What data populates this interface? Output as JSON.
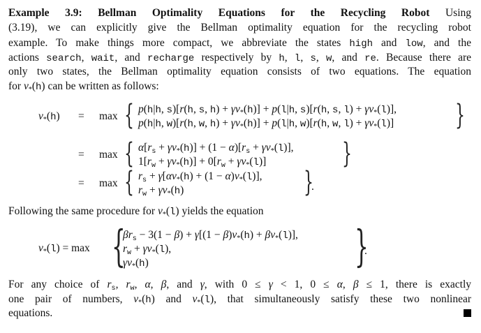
{
  "intro": {
    "lines": [
      "#Example 3.9: Bellman Optimality Equations for the Recycling Robot# Using",
      "(3.19), we can explicitly give the Bellman optimality equation for the recycling robot",
      "example. To make things more compact, we abbreviate the states `high` and `low`, and the",
      "actions `search`, `wait`, and `recharge` respectively by `h`, `l`, `s`, `w`, and `re`. Because there are",
      "only two states, the Bellman optimality equation consists of two equations. The equation",
      "for $v$_{*}(`h`) can be written as follows:"
    ]
  },
  "eq_h": {
    "lhs": "$v$_{*}(`h`)",
    "equals": "=",
    "max": "max",
    "groups": [
      [
        "$p$(`h`|`h`, `s`)[$r$(`h`, `s`, `h`) + $γv$_{*}(`h`)] + $p$(`l`|`h`, `s`)[$r$(`h`, `s`, `l`) + $γv$_{*}(`l`)],",
        "$p$(`h`|`h`, `w`)[$r$(`h`, `w`, `h`) + $γv$_{*}(`h`)] + $p$(`l`|`h`, `w`)[$r$(`h`, `w`, `l`) + $γv$_{*}(`l`)]"
      ],
      [
        "$α$[$r$_{`s`} + $γv$_{*}(`h`)] + (1 − $α$)[$r$_{`s`} + $γv$_{*}(`l`)],",
        "1[$r$_{`w`} + $γv$_{*}(`h`)] + 0[$r$_{`w`} + $γv$_{*}(`l`)]"
      ],
      [
        "$r$_{`s`} + $γ$[$αv$_{*}(`h`) + (1 − $α$)$v$_{*}(`l`)],",
        "$r$_{`w`} + $γv$_{*}(`h`)"
      ]
    ],
    "period": "."
  },
  "following": "Following the same procedure for $v$_{*}(`l`) yields the equation",
  "eq_l": {
    "lhs": "$v$_{*}(`l`) = max",
    "rows": [
      "$βr$_{`s`} − 3(1 − $β$) + $γ$[(1 − $β$)$v$_{*}(`h`) + $βv$_{*}(`l`)],",
      "$r$_{`w`} + $γv$_{*}(`l`),",
      "$γv$_{*}(`h`)"
    ],
    "period": "."
  },
  "closing": {
    "lines": [
      "For any choice of $r$_{`s`}, $r$_{`w`}, $α$, $β$, and $γ$, with 0 ≤ $γ$ < 1, 0 ≤ $α$, $β$ ≤ 1, there is exactly",
      "one pair of numbers, $v$_{*}(`h`) and $v$_{*}(`l`), that simultaneously satisfy these two nonlinear",
      "equations."
    ]
  },
  "end_mark": "qed-square-icon"
}
